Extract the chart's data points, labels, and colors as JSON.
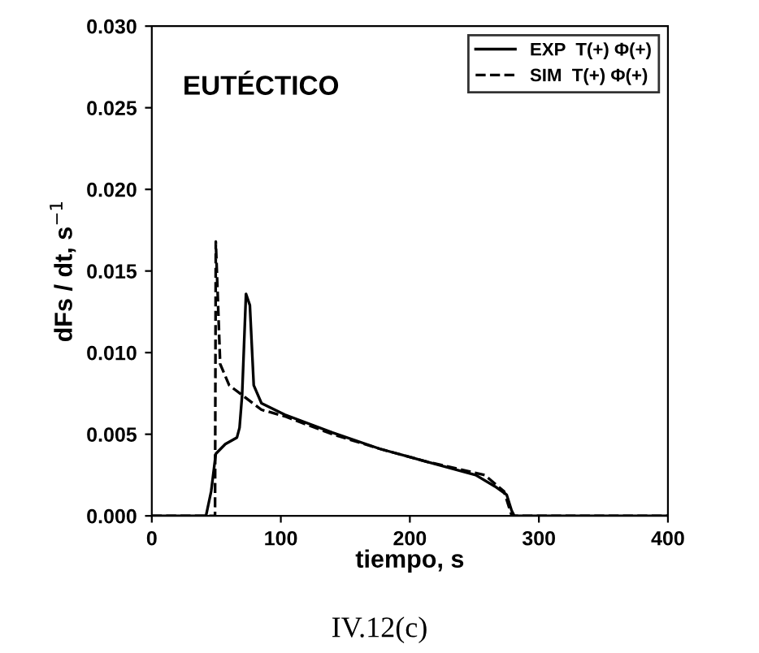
{
  "chart_data": {
    "type": "line",
    "xlabel": "tiempo, s",
    "ylabel": "dFs / dt, s$^{−1}$",
    "annotations": [
      "EUTÉCTICO",
      "IV.12(c)"
    ],
    "xlim": [
      0,
      400
    ],
    "xticks": [
      0,
      100,
      200,
      300,
      400
    ],
    "ylim": [
      0,
      0.03
    ],
    "yticks": [
      {
        "value": 0,
        "label": "0.000"
      },
      {
        "value": 0.005,
        "label": "0.005"
      },
      {
        "value": 0.01,
        "label": "0.010"
      },
      {
        "value": 0.015,
        "label": "0.015"
      },
      {
        "value": 0.02,
        "label": "0.020"
      },
      {
        "value": 0.025,
        "label": "0.025"
      },
      {
        "value": 0.03,
        "label": "0.030"
      }
    ],
    "legend": "top right",
    "grid": false,
    "series": [
      {
        "name": "EXP  T(+) Φ(+)",
        "color": "#000000",
        "line_style": "solid",
        "x": [
          0,
          42,
          46,
          49.6,
          57,
          66,
          68,
          70,
          73,
          76,
          79,
          85,
          103,
          140,
          177,
          214,
          251,
          266,
          275,
          279,
          281,
          400
        ],
        "values": [
          0,
          0,
          0.0015,
          0.0038,
          0.0044,
          0.0048,
          0.0054,
          0.0074,
          0.0136,
          0.0129,
          0.008,
          0.0069,
          0.0062,
          0.0051,
          0.0041,
          0.0033,
          0.0025,
          0.0018,
          0.0013,
          0.0003,
          0,
          0
        ]
      },
      {
        "name": "SIM  T(+) Φ(+)",
        "color": "#000000",
        "line_style": "dashed",
        "x": [
          0,
          49,
          49.6,
          53,
          60,
          85,
          103,
          140,
          177,
          214,
          258,
          273,
          279,
          400
        ],
        "values": [
          0,
          0,
          0.0168,
          0.0093,
          0.008,
          0.0065,
          0.0061,
          0.005,
          0.0041,
          0.0033,
          0.0025,
          0.0015,
          0,
          0
        ]
      }
    ]
  }
}
